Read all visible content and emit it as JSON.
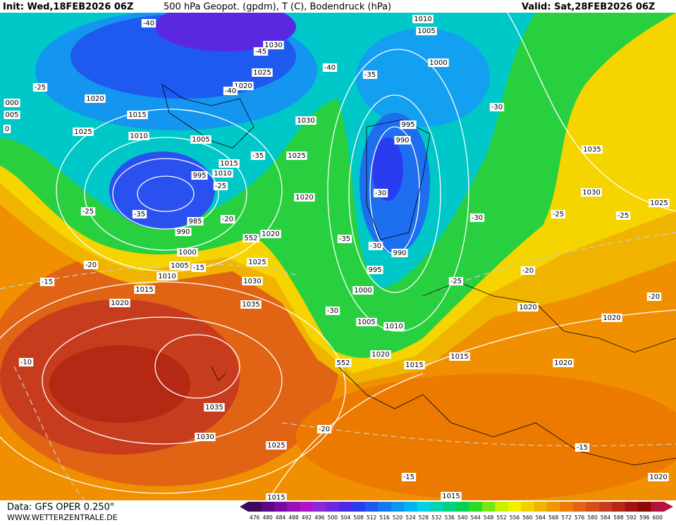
{
  "header": {
    "init": "Init: Wed,18FEB2026 06Z",
    "title": "500 hPa Geopot. (gpdm), T (C), Bodendruck (hPa)",
    "valid": "Valid: Sat,28FEB2026 06Z"
  },
  "footer": {
    "data": "Data: GFS OPER 0.250°",
    "site": "WWW.WETTERZENTRALE.DE"
  },
  "colorbar": {
    "values": [
      476,
      480,
      484,
      488,
      492,
      496,
      500,
      504,
      508,
      512,
      516,
      520,
      524,
      528,
      532,
      536,
      540,
      544,
      548,
      552,
      556,
      560,
      564,
      568,
      572,
      576,
      580,
      584,
      588,
      592,
      596,
      600
    ],
    "colors": [
      "#3c0a5c",
      "#5a0a82",
      "#7a0aa0",
      "#9a10b8",
      "#b014c8",
      "#8c28d8",
      "#6a28e0",
      "#4a2ae8",
      "#2a3cf0",
      "#1e5af0",
      "#1478f0",
      "#0a96f0",
      "#00b4f0",
      "#00d2e6",
      "#00d2b4",
      "#00d282",
      "#00d250",
      "#28dc28",
      "#78e614",
      "#c8f000",
      "#f0f000",
      "#f0d200",
      "#f0b400",
      "#f09600",
      "#ec7a00",
      "#e06414",
      "#d2501e",
      "#c83c1e",
      "#b42814",
      "#a01414",
      "#8c0a0a",
      "#b4143c"
    ]
  },
  "isobar_labels": [
    "1020",
    "1015",
    "1025",
    "1010",
    "1005",
    "995",
    "1015",
    "1010",
    "985",
    "990",
    "1000",
    "1005",
    "1010",
    "1015",
    "1020",
    "1025",
    "1030",
    "1035",
    "1035",
    "1030",
    "1025",
    "1015",
    "1020",
    "1030",
    "1025",
    "1020",
    "1030",
    "1025",
    "1020",
    "1010",
    "1005",
    "1000",
    "995",
    "990",
    "990",
    "995",
    "1000",
    "1005",
    "1010",
    "1020",
    "1015",
    "1015",
    "1020",
    "1020",
    "1020",
    "1035",
    "1030",
    "1025",
    "1020",
    "1015",
    "000",
    "005",
    "0"
  ],
  "temperature_labels": [
    "-40",
    "-45",
    "-40",
    "-35",
    "-25",
    "-40",
    "-30",
    "-35",
    "-25",
    "-30",
    "-25",
    "-35",
    "-20",
    "-30",
    "-25",
    "-25",
    "-35",
    "-30",
    "-20",
    "-15",
    "-15",
    "-20",
    "-25",
    "-20",
    "-30",
    "-10",
    "-20",
    "-15",
    "-15"
  ],
  "height_labels": [
    "552",
    "552"
  ]
}
